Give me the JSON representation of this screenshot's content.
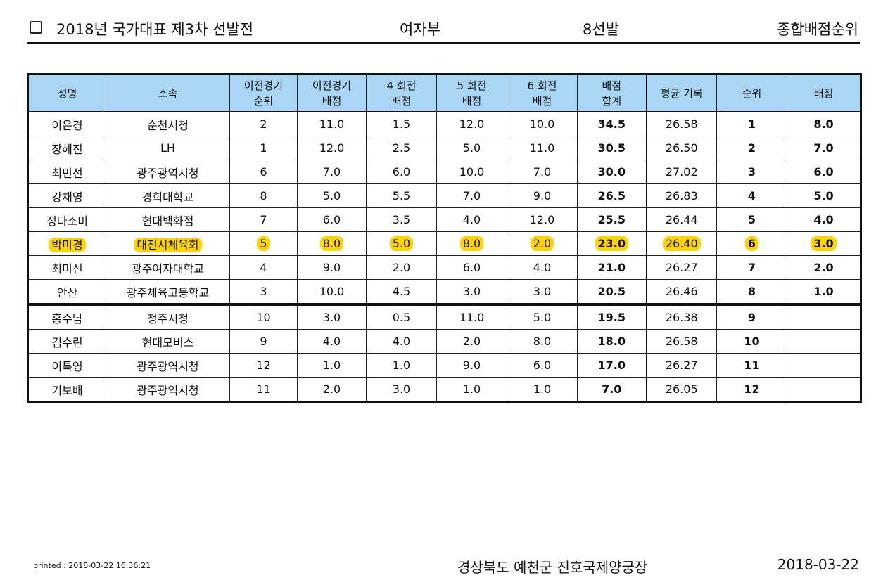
{
  "header": {
    "title": "2018년 국가대표 제3차 선발전",
    "division": "여자부",
    "selection": "8선발",
    "ranking_type": "종합배점순위"
  },
  "table": {
    "columns": [
      "성명",
      "소속",
      "이전경기\n순위",
      "이전경기\n배점",
      "4 회전\n배점",
      "5 회전\n배점",
      "6 회전\n배점",
      "배점\n합계",
      "평균 기록",
      "순위",
      "배점"
    ],
    "rows": [
      {
        "name": "이은경",
        "team": "순천시청",
        "prev_rank": "2",
        "prev_pts": "11.0",
        "r4": "1.5",
        "r5": "12.0",
        "r6": "10.0",
        "total": "34.5",
        "avg": "26.58",
        "rank": "1",
        "pts": "8.0"
      },
      {
        "name": "장혜진",
        "team": "LH",
        "prev_rank": "1",
        "prev_pts": "12.0",
        "r4": "2.5",
        "r5": "5.0",
        "r6": "11.0",
        "total": "30.5",
        "avg": "26.50",
        "rank": "2",
        "pts": "7.0"
      },
      {
        "name": "최민선",
        "team": "광주광역시청",
        "prev_rank": "6",
        "prev_pts": "7.0",
        "r4": "6.0",
        "r5": "10.0",
        "r6": "7.0",
        "total": "30.0",
        "avg": "27.02",
        "rank": "3",
        "pts": "6.0"
      },
      {
        "name": "강채영",
        "team": "경희대학교",
        "prev_rank": "8",
        "prev_pts": "5.0",
        "r4": "5.5",
        "r5": "7.0",
        "r6": "9.0",
        "total": "26.5",
        "avg": "26.83",
        "rank": "4",
        "pts": "5.0"
      },
      {
        "name": "정다소미",
        "team": "현대백화점",
        "prev_rank": "7",
        "prev_pts": "6.0",
        "r4": "3.5",
        "r5": "4.0",
        "r6": "12.0",
        "total": "25.5",
        "avg": "26.44",
        "rank": "5",
        "pts": "4.0"
      },
      {
        "name": "박미경",
        "team": "대전시체육회",
        "prev_rank": "5",
        "prev_pts": "8.0",
        "r4": "5.0",
        "r5": "8.0",
        "r6": "2.0",
        "total": "23.0",
        "avg": "26.40",
        "rank": "6",
        "pts": "3.0"
      },
      {
        "name": "최미선",
        "team": "광주여자대학교",
        "prev_rank": "4",
        "prev_pts": "9.0",
        "r4": "2.0",
        "r5": "6.0",
        "r6": "4.0",
        "total": "21.0",
        "avg": "26.27",
        "rank": "7",
        "pts": "2.0"
      },
      {
        "name": "안산",
        "team": "광주체육고등학교",
        "prev_rank": "3",
        "prev_pts": "10.0",
        "r4": "4.5",
        "r5": "3.0",
        "r6": "3.0",
        "total": "20.5",
        "avg": "26.46",
        "rank": "8",
        "pts": "1.0"
      },
      {
        "name": "홍수남",
        "team": "청주시청",
        "prev_rank": "10",
        "prev_pts": "3.0",
        "r4": "0.5",
        "r5": "11.0",
        "r6": "5.0",
        "total": "19.5",
        "avg": "26.38",
        "rank": "9",
        "pts": ""
      },
      {
        "name": "김수린",
        "team": "현대모비스",
        "prev_rank": "9",
        "prev_pts": "4.0",
        "r4": "4.0",
        "r5": "2.0",
        "r6": "8.0",
        "total": "18.0",
        "avg": "26.58",
        "rank": "10",
        "pts": ""
      },
      {
        "name": "이특영",
        "team": "광주광역시청",
        "prev_rank": "12",
        "prev_pts": "1.0",
        "r4": "1.0",
        "r5": "9.0",
        "r6": "6.0",
        "total": "17.0",
        "avg": "26.27",
        "rank": "11",
        "pts": ""
      },
      {
        "name": "기보배",
        "team": "광주광역시청",
        "prev_rank": "11",
        "prev_pts": "2.0",
        "r4": "3.0",
        "r5": "1.0",
        "r6": "1.0",
        "total": "7.0",
        "avg": "26.05",
        "rank": "12",
        "pts": ""
      }
    ],
    "highlight_row_index": 5,
    "cutline_after_row_index": 7,
    "colors": {
      "header_bg": "#a9d6f5",
      "highlight": "#ffd400"
    }
  },
  "footer": {
    "printed": "printed : 2018-03-22 16:36:21",
    "venue": "경상북도 예천군 진호국제양궁장",
    "date": "2018-03-22"
  }
}
